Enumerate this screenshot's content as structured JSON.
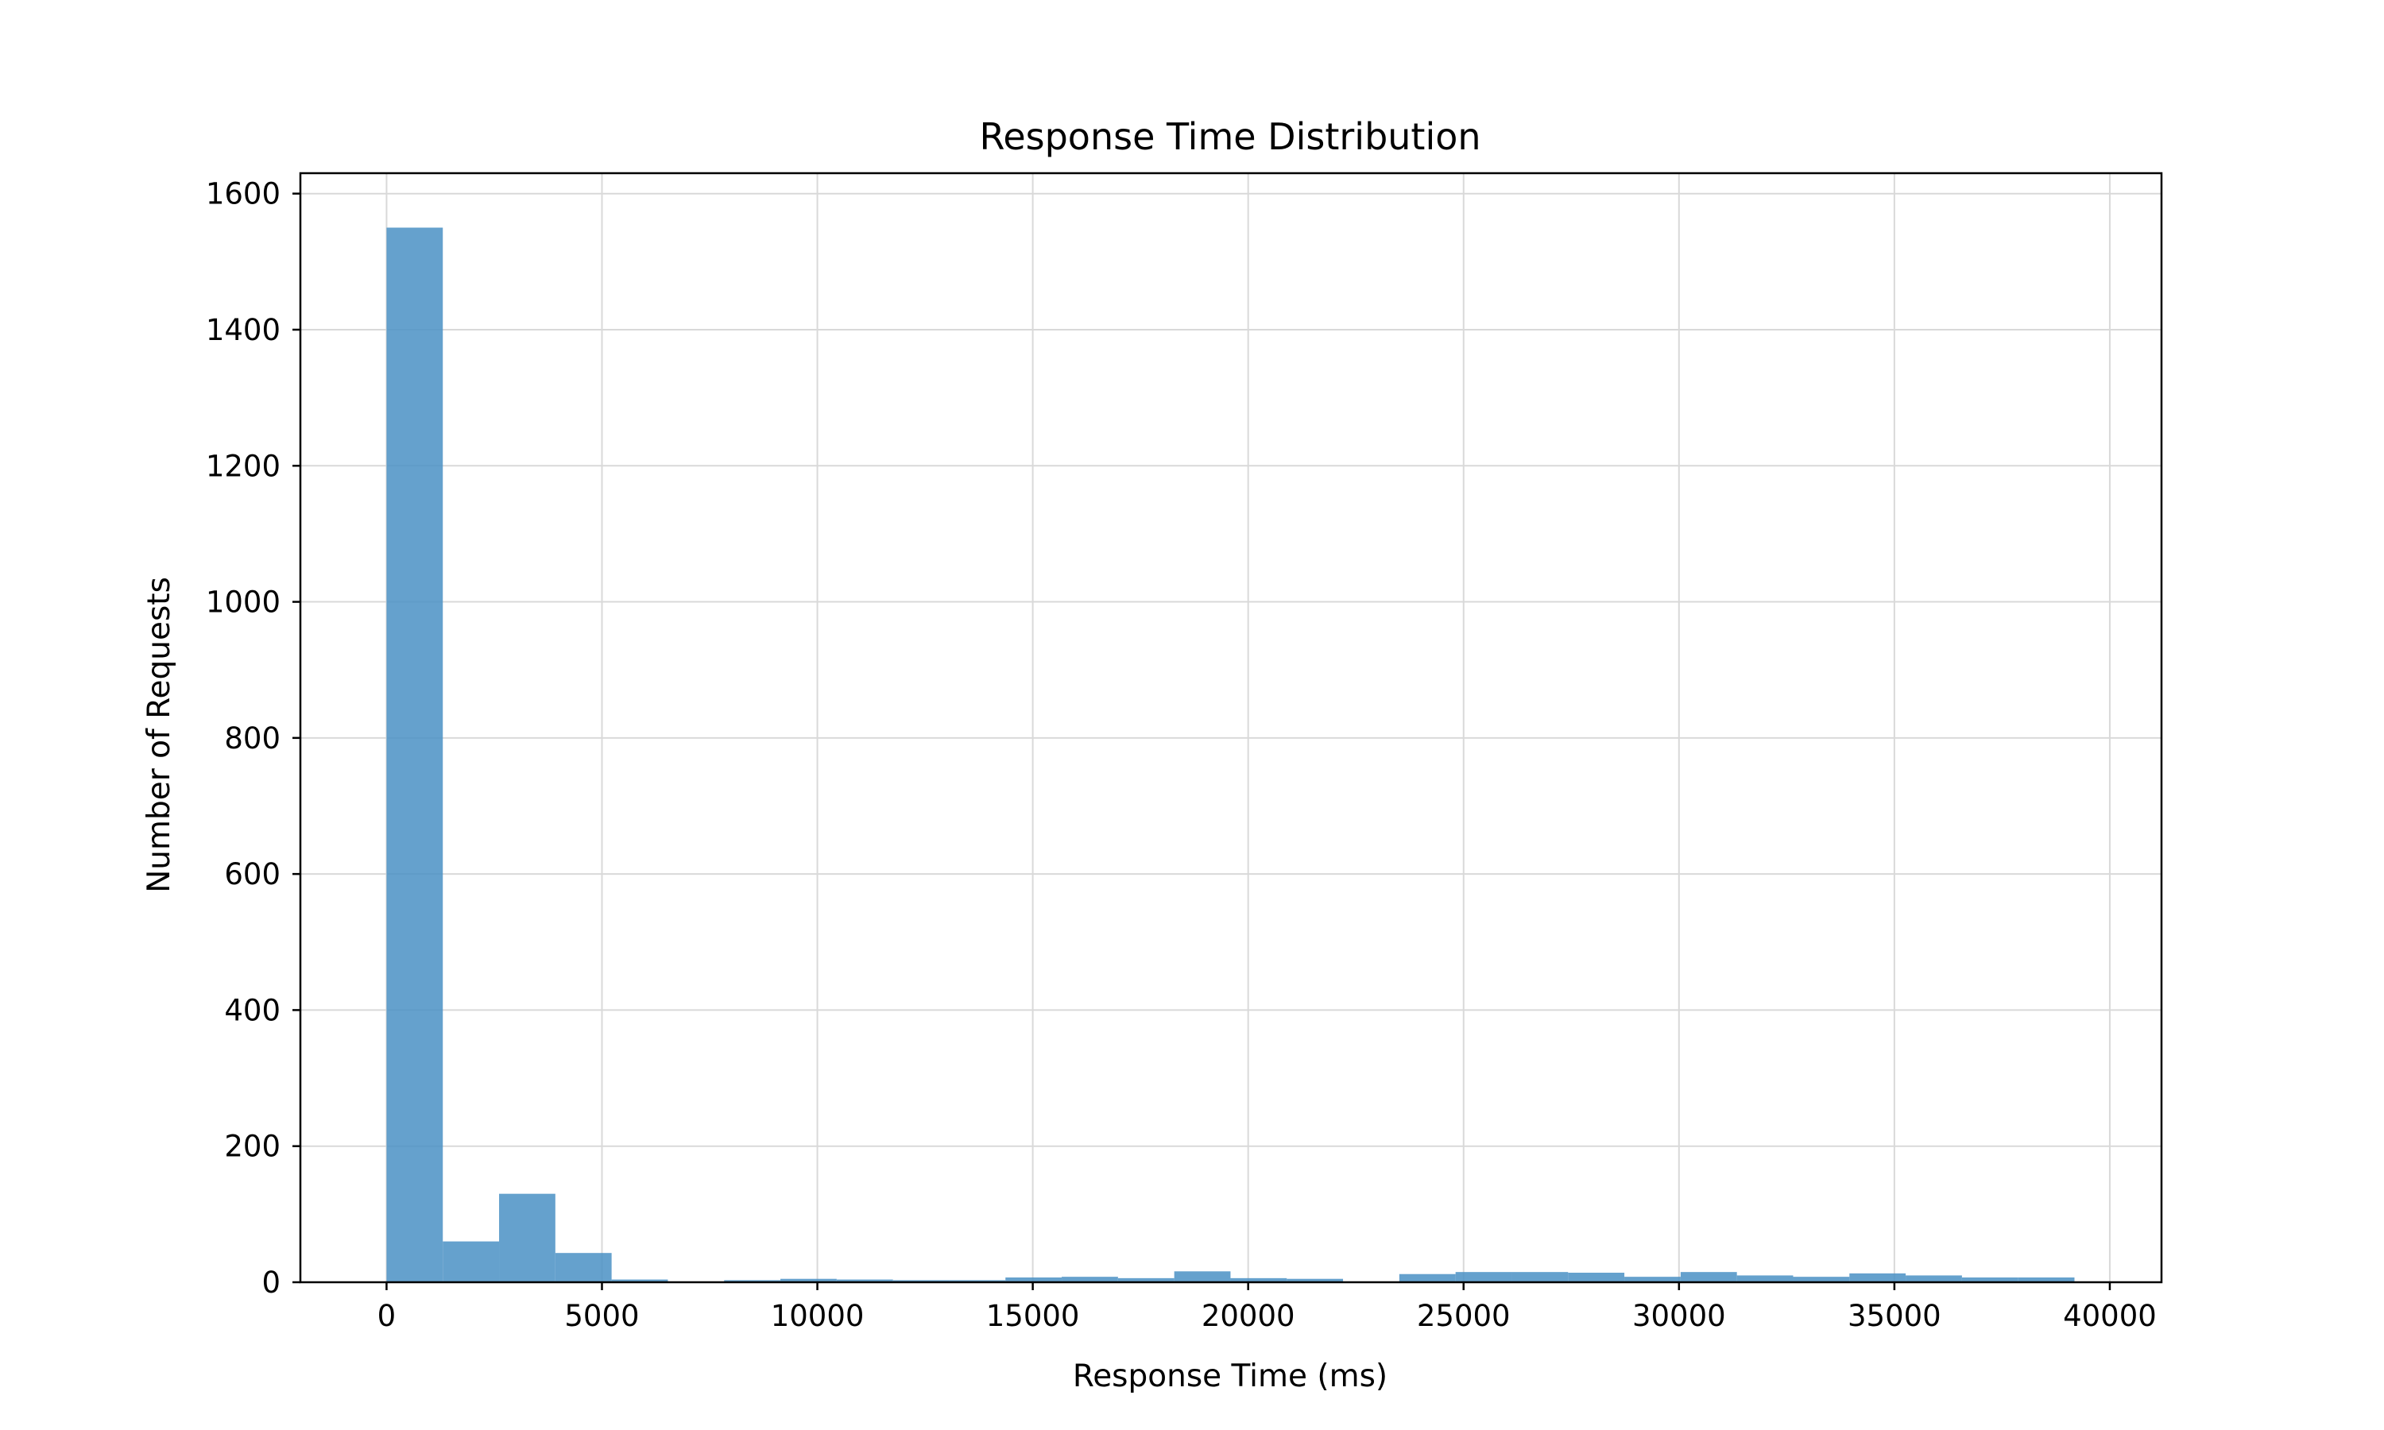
{
  "chart_data": {
    "type": "bar",
    "subtype": "histogram",
    "title": "Response Time Distribution",
    "xlabel": "Response Time (ms)",
    "ylabel": "Number of Requests",
    "xlim": [
      -2000,
      41200
    ],
    "ylim": [
      0,
      1630
    ],
    "x_ticks": [
      0,
      5000,
      10000,
      15000,
      20000,
      25000,
      30000,
      35000,
      40000
    ],
    "y_ticks": [
      0,
      200,
      400,
      600,
      800,
      1000,
      1200,
      1400,
      1600
    ],
    "grid": true,
    "legend": "none",
    "bar_color": "#4a90c4",
    "bar_opacity": 0.85,
    "bin_edges": [
      0,
      1306,
      2612,
      3918,
      5224,
      6530,
      7836,
      9142,
      10448,
      11754,
      13060,
      14366,
      15672,
      16978,
      18284,
      19590,
      20896,
      22202,
      23508,
      24814,
      26120,
      27426,
      28732,
      30038,
      31344,
      32650,
      33956,
      35262,
      36568,
      37874,
      39180
    ],
    "values": [
      1550,
      60,
      130,
      43,
      4,
      0,
      3,
      5,
      4,
      3,
      3,
      7,
      8,
      6,
      16,
      6,
      5,
      0,
      12,
      15,
      15,
      14,
      8,
      15,
      10,
      8,
      13,
      10,
      7,
      7
    ]
  }
}
